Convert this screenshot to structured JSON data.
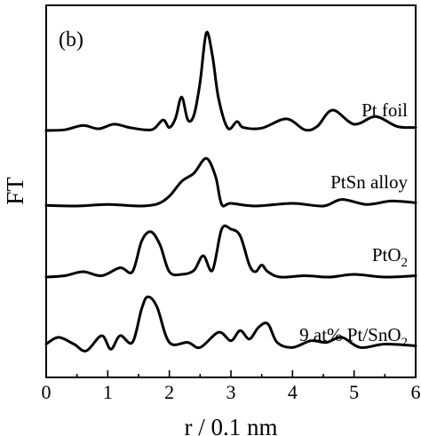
{
  "chart_data": {
    "type": "line",
    "panel_label": "(b)",
    "xlabel": "r / 0.1 nm",
    "ylabel": "FT",
    "xlim": [
      0,
      6
    ],
    "x_ticks": [
      "0",
      "1",
      "2",
      "3",
      "4",
      "5",
      "6"
    ],
    "y_ticks_labeled": false,
    "layout": "stacked / vertically offset",
    "series": [
      {
        "name": "Pt foil",
        "points": [
          [
            0.0,
            0.03
          ],
          [
            0.3,
            0.05
          ],
          [
            0.6,
            0.18
          ],
          [
            0.85,
            0.08
          ],
          [
            1.1,
            0.22
          ],
          [
            1.35,
            0.12
          ],
          [
            1.6,
            0.05
          ],
          [
            1.75,
            0.08
          ],
          [
            1.9,
            0.35
          ],
          [
            2.0,
            0.12
          ],
          [
            2.1,
            0.4
          ],
          [
            2.2,
            1.05
          ],
          [
            2.3,
            0.35
          ],
          [
            2.4,
            0.5
          ],
          [
            2.5,
            1.5
          ],
          [
            2.6,
            3.0
          ],
          [
            2.7,
            2.3
          ],
          [
            2.8,
            1.0
          ],
          [
            2.95,
            0.1
          ],
          [
            3.1,
            0.3
          ],
          [
            3.2,
            0.12
          ],
          [
            3.5,
            0.1
          ],
          [
            3.9,
            0.38
          ],
          [
            4.2,
            0.05
          ],
          [
            4.4,
            0.15
          ],
          [
            4.65,
            0.65
          ],
          [
            5.0,
            0.22
          ],
          [
            5.35,
            0.45
          ],
          [
            5.7,
            0.15
          ],
          [
            6.0,
            0.12
          ]
        ]
      },
      {
        "name": "PtSn alloy",
        "points": [
          [
            0.0,
            0.02
          ],
          [
            0.5,
            0.0
          ],
          [
            1.0,
            0.05
          ],
          [
            1.5,
            0.0
          ],
          [
            1.8,
            0.06
          ],
          [
            2.0,
            0.3
          ],
          [
            2.2,
            0.75
          ],
          [
            2.4,
            1.0
          ],
          [
            2.6,
            1.45
          ],
          [
            2.75,
            0.9
          ],
          [
            2.85,
            0.05
          ],
          [
            3.0,
            0.08
          ],
          [
            3.4,
            0.0
          ],
          [
            4.0,
            0.08
          ],
          [
            4.5,
            0.0
          ],
          [
            4.8,
            0.2
          ],
          [
            5.2,
            0.05
          ],
          [
            5.6,
            0.15
          ],
          [
            6.0,
            0.1
          ]
        ]
      },
      {
        "name": "PtO2",
        "points": [
          [
            0.0,
            0.0
          ],
          [
            0.3,
            0.05
          ],
          [
            0.6,
            0.2
          ],
          [
            0.9,
            0.05
          ],
          [
            1.2,
            0.35
          ],
          [
            1.4,
            0.2
          ],
          [
            1.55,
            1.35
          ],
          [
            1.7,
            1.7
          ],
          [
            1.85,
            1.2
          ],
          [
            2.0,
            0.2
          ],
          [
            2.2,
            0.1
          ],
          [
            2.4,
            0.25
          ],
          [
            2.55,
            0.8
          ],
          [
            2.7,
            0.25
          ],
          [
            2.85,
            1.8
          ],
          [
            3.0,
            1.8
          ],
          [
            3.15,
            1.55
          ],
          [
            3.3,
            0.45
          ],
          [
            3.4,
            0.2
          ],
          [
            3.5,
            0.45
          ],
          [
            3.6,
            0.2
          ],
          [
            3.8,
            0.0
          ],
          [
            4.2,
            0.05
          ],
          [
            4.6,
            0.0
          ],
          [
            5.0,
            0.1
          ],
          [
            5.5,
            0.0
          ],
          [
            6.0,
            0.05
          ]
        ]
      },
      {
        "name": "9 at% Pt/SnO2",
        "points": [
          [
            0.0,
            0.25
          ],
          [
            0.2,
            0.45
          ],
          [
            0.45,
            0.25
          ],
          [
            0.65,
            0.05
          ],
          [
            0.9,
            0.5
          ],
          [
            1.05,
            0.1
          ],
          [
            1.2,
            0.5
          ],
          [
            1.4,
            0.3
          ],
          [
            1.55,
            1.3
          ],
          [
            1.65,
            1.65
          ],
          [
            1.8,
            1.35
          ],
          [
            2.0,
            0.3
          ],
          [
            2.3,
            0.3
          ],
          [
            2.5,
            0.15
          ],
          [
            2.8,
            0.6
          ],
          [
            3.0,
            0.35
          ],
          [
            3.15,
            0.65
          ],
          [
            3.3,
            0.4
          ],
          [
            3.45,
            0.75
          ],
          [
            3.6,
            0.85
          ],
          [
            3.75,
            0.3
          ],
          [
            4.0,
            0.15
          ],
          [
            4.3,
            0.35
          ],
          [
            4.55,
            0.3
          ],
          [
            4.8,
            0.45
          ],
          [
            5.1,
            0.15
          ],
          [
            5.5,
            0.25
          ],
          [
            6.0,
            0.2
          ]
        ]
      }
    ],
    "legend": "labels placed next to each curve on the right",
    "grid": false
  }
}
